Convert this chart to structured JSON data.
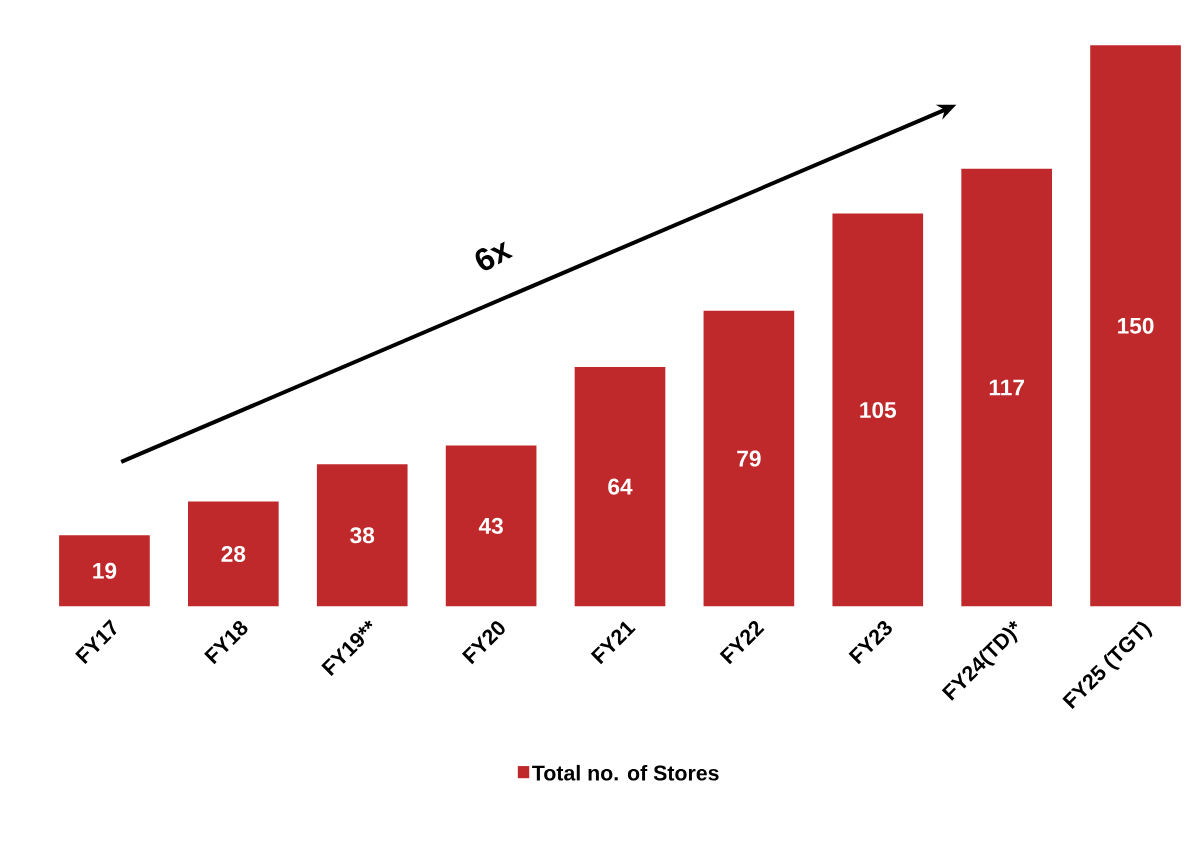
{
  "chart_data": {
    "type": "bar",
    "categories": [
      "FY17",
      "FY18",
      "FY19**",
      "FY20",
      "FY21",
      "FY22",
      "FY23",
      "FY24(TD)*",
      "FY25 (TGT)"
    ],
    "series": [
      {
        "name": "Total no. of Stores",
        "color": "#c0292b",
        "values": [
          19,
          28,
          38,
          43,
          64,
          79,
          105,
          117,
          150
        ]
      }
    ],
    "data_labels": true,
    "legend": "bottom",
    "annotations": [
      "6x"
    ]
  }
}
